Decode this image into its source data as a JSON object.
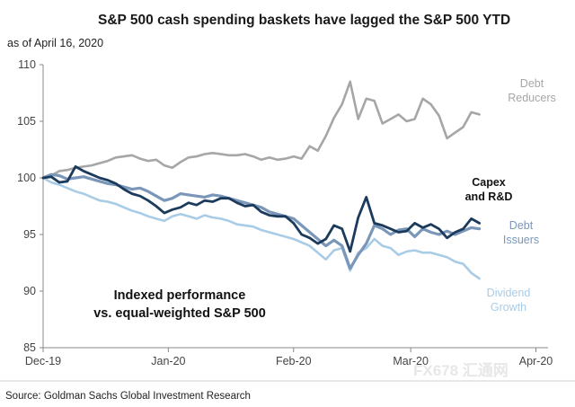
{
  "chart_data": {
    "type": "line",
    "title": "S&P 500 cash spending baskets have lagged the S&P 500 YTD",
    "subtitle": "as of April 16, 2020",
    "source": "Source: Goldman Sachs Global Investment Research",
    "annotation": [
      "Indexed performance",
      "vs. equal-weighted S&P 500"
    ],
    "ylim": [
      85,
      110
    ],
    "yticks": [
      85,
      90,
      95,
      100,
      105,
      110
    ],
    "xlim": [
      0,
      125
    ],
    "xticks": [
      {
        "label": "Dec-19",
        "x": 0
      },
      {
        "label": "Jan-20",
        "x": 31
      },
      {
        "label": "Feb-20",
        "x": 62
      },
      {
        "label": "Mar-20",
        "x": 91
      },
      {
        "label": "Apr-20",
        "x": 122
      }
    ],
    "series": [
      {
        "name": "Debt Reducers",
        "label_lines": [
          "Debt",
          "Reducers"
        ],
        "color": "#a6a6a6",
        "x": [
          0,
          2,
          4,
          6,
          8,
          10,
          12,
          14,
          16,
          18,
          20,
          22,
          24,
          26,
          28,
          30,
          32,
          34,
          36,
          38,
          40,
          42,
          44,
          46,
          48,
          50,
          52,
          54,
          56,
          58,
          60,
          62,
          64,
          66,
          68,
          70,
          72,
          74,
          76,
          78,
          80,
          82,
          84,
          86,
          88,
          90,
          92,
          94,
          96,
          98,
          100,
          102,
          104,
          106,
          108
        ],
        "values": [
          100.0,
          100.2,
          100.6,
          100.7,
          100.9,
          101.0,
          101.1,
          101.3,
          101.5,
          101.8,
          101.9,
          102.0,
          101.7,
          101.5,
          101.6,
          101.1,
          100.9,
          101.4,
          101.8,
          101.9,
          102.1,
          102.2,
          102.1,
          102.0,
          102.0,
          102.1,
          101.9,
          101.6,
          101.8,
          101.6,
          101.7,
          101.9,
          101.7,
          102.8,
          102.4,
          103.7,
          105.3,
          106.5,
          108.5,
          105.2,
          107.0,
          106.8,
          104.8,
          105.2,
          105.6,
          105.0,
          105.2,
          107.0,
          106.5,
          105.5,
          103.5,
          104.0,
          104.5,
          105.8,
          105.6
        ]
      },
      {
        "name": "Capex and R&D",
        "label_lines": [
          "Capex",
          "and R&D"
        ],
        "color": "#1b3a5c",
        "x": [
          0,
          2,
          4,
          6,
          8,
          10,
          12,
          14,
          16,
          18,
          20,
          22,
          24,
          26,
          28,
          30,
          32,
          34,
          36,
          38,
          40,
          42,
          44,
          46,
          48,
          50,
          52,
          54,
          56,
          58,
          60,
          62,
          64,
          66,
          68,
          70,
          72,
          74,
          76,
          78,
          80,
          82,
          84,
          86,
          88,
          90,
          92,
          94,
          96,
          98,
          100,
          102,
          104,
          106,
          108
        ],
        "values": [
          100.0,
          100.1,
          99.6,
          99.7,
          101.0,
          100.6,
          100.3,
          100.0,
          99.8,
          99.5,
          99.0,
          98.6,
          98.4,
          98.0,
          97.5,
          96.9,
          97.2,
          97.4,
          97.8,
          97.6,
          98.0,
          97.9,
          98.2,
          98.2,
          97.8,
          97.5,
          97.6,
          97.0,
          96.7,
          96.6,
          96.6,
          96.0,
          95.0,
          94.7,
          94.2,
          94.6,
          95.8,
          95.5,
          93.5,
          96.5,
          98.3,
          96.0,
          95.8,
          95.5,
          95.2,
          95.3,
          96.0,
          95.6,
          95.9,
          95.5,
          94.7,
          95.2,
          95.5,
          96.4,
          96.0
        ]
      },
      {
        "name": "Debt Issuers",
        "label_lines": [
          "Debt",
          "Issuers"
        ],
        "color": "#7a97b9",
        "x": [
          0,
          2,
          4,
          6,
          8,
          10,
          12,
          14,
          16,
          18,
          20,
          22,
          24,
          26,
          28,
          30,
          32,
          34,
          36,
          38,
          40,
          42,
          44,
          46,
          48,
          50,
          52,
          54,
          56,
          58,
          60,
          62,
          64,
          66,
          68,
          70,
          72,
          74,
          76,
          78,
          80,
          82,
          84,
          86,
          88,
          90,
          92,
          94,
          96,
          98,
          100,
          102,
          104,
          106,
          108
        ],
        "values": [
          100.0,
          100.3,
          100.2,
          99.9,
          100.0,
          100.1,
          99.9,
          99.7,
          99.5,
          99.4,
          99.2,
          99.0,
          99.1,
          98.8,
          98.4,
          98.0,
          98.2,
          98.6,
          98.5,
          98.4,
          98.3,
          98.5,
          98.4,
          98.2,
          98.0,
          97.8,
          97.6,
          97.4,
          97.0,
          96.8,
          96.6,
          96.4,
          95.8,
          95.2,
          94.6,
          94.0,
          94.5,
          94.0,
          92.0,
          93.2,
          94.2,
          95.8,
          95.5,
          95.0,
          95.4,
          95.5,
          94.8,
          95.5,
          95.2,
          95.0,
          95.3,
          95.0,
          95.3,
          95.6,
          95.5
        ]
      },
      {
        "name": "Dividend Growth",
        "label_lines": [
          "Dividend",
          "Growth"
        ],
        "color": "#a9cce6",
        "x": [
          0,
          2,
          4,
          6,
          8,
          10,
          12,
          14,
          16,
          18,
          20,
          22,
          24,
          26,
          28,
          30,
          32,
          34,
          36,
          38,
          40,
          42,
          44,
          46,
          48,
          50,
          52,
          54,
          56,
          58,
          60,
          62,
          64,
          66,
          68,
          70,
          72,
          74,
          76,
          78,
          80,
          82,
          84,
          86,
          88,
          90,
          92,
          94,
          96,
          98,
          100,
          102,
          104,
          106,
          108
        ],
        "values": [
          100.0,
          99.6,
          99.4,
          99.1,
          98.8,
          98.6,
          98.3,
          98.0,
          97.9,
          97.7,
          97.4,
          97.1,
          96.9,
          96.6,
          96.4,
          96.2,
          96.6,
          96.8,
          96.6,
          96.4,
          96.7,
          96.5,
          96.4,
          96.2,
          95.9,
          95.8,
          95.7,
          95.4,
          95.2,
          95.0,
          94.8,
          94.6,
          94.3,
          94.0,
          93.4,
          92.8,
          93.6,
          93.8,
          91.8,
          93.4,
          93.8,
          94.6,
          94.0,
          93.8,
          93.2,
          93.5,
          93.6,
          93.4,
          93.4,
          93.2,
          93.0,
          92.6,
          92.4,
          91.6,
          91.1
        ]
      }
    ]
  },
  "watermark": "FX678 汇通网"
}
